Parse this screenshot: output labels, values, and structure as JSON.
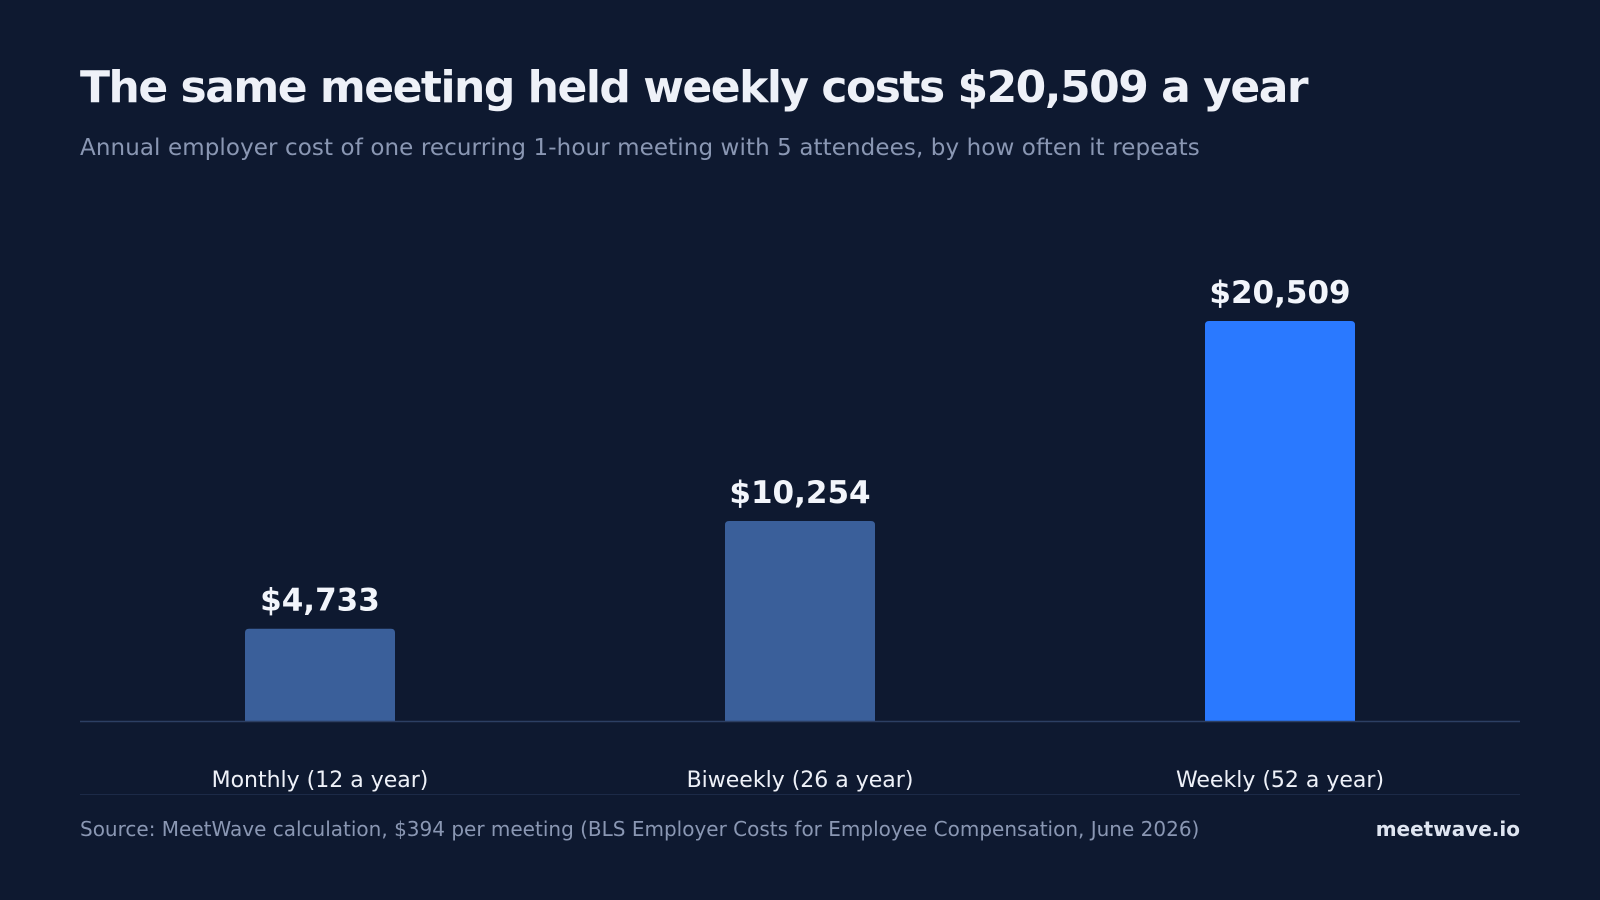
{
  "title": "The same meeting held weekly costs $20,509 a year",
  "subtitle": "Annual employer cost of one recurring 1-hour meeting with 5 attendees, by how often it repeats",
  "source": "Source: MeetWave calculation, $394 per meeting (BLS Employer Costs for Employee Compensation, June 2026)",
  "brand": "meetwave.io",
  "colors": {
    "background": "#0e1930",
    "bar_default": "#3a5f9a",
    "bar_highlight": "#2a79ff",
    "axis": "#2c3f63"
  },
  "chart_data": {
    "type": "bar",
    "title": "The same meeting held weekly costs $20,509 a year",
    "xlabel": "",
    "ylabel": "",
    "categories": [
      "Monthly (12 a year)",
      "Biweekly (26 a year)",
      "Weekly (52 a year)"
    ],
    "values": [
      4733,
      10254,
      20509
    ],
    "value_labels": [
      "$4,733",
      "$10,254",
      "$20,509"
    ],
    "highlight_index": 2,
    "ylim": [
      0,
      20509
    ],
    "grid": false,
    "legend": "none"
  }
}
